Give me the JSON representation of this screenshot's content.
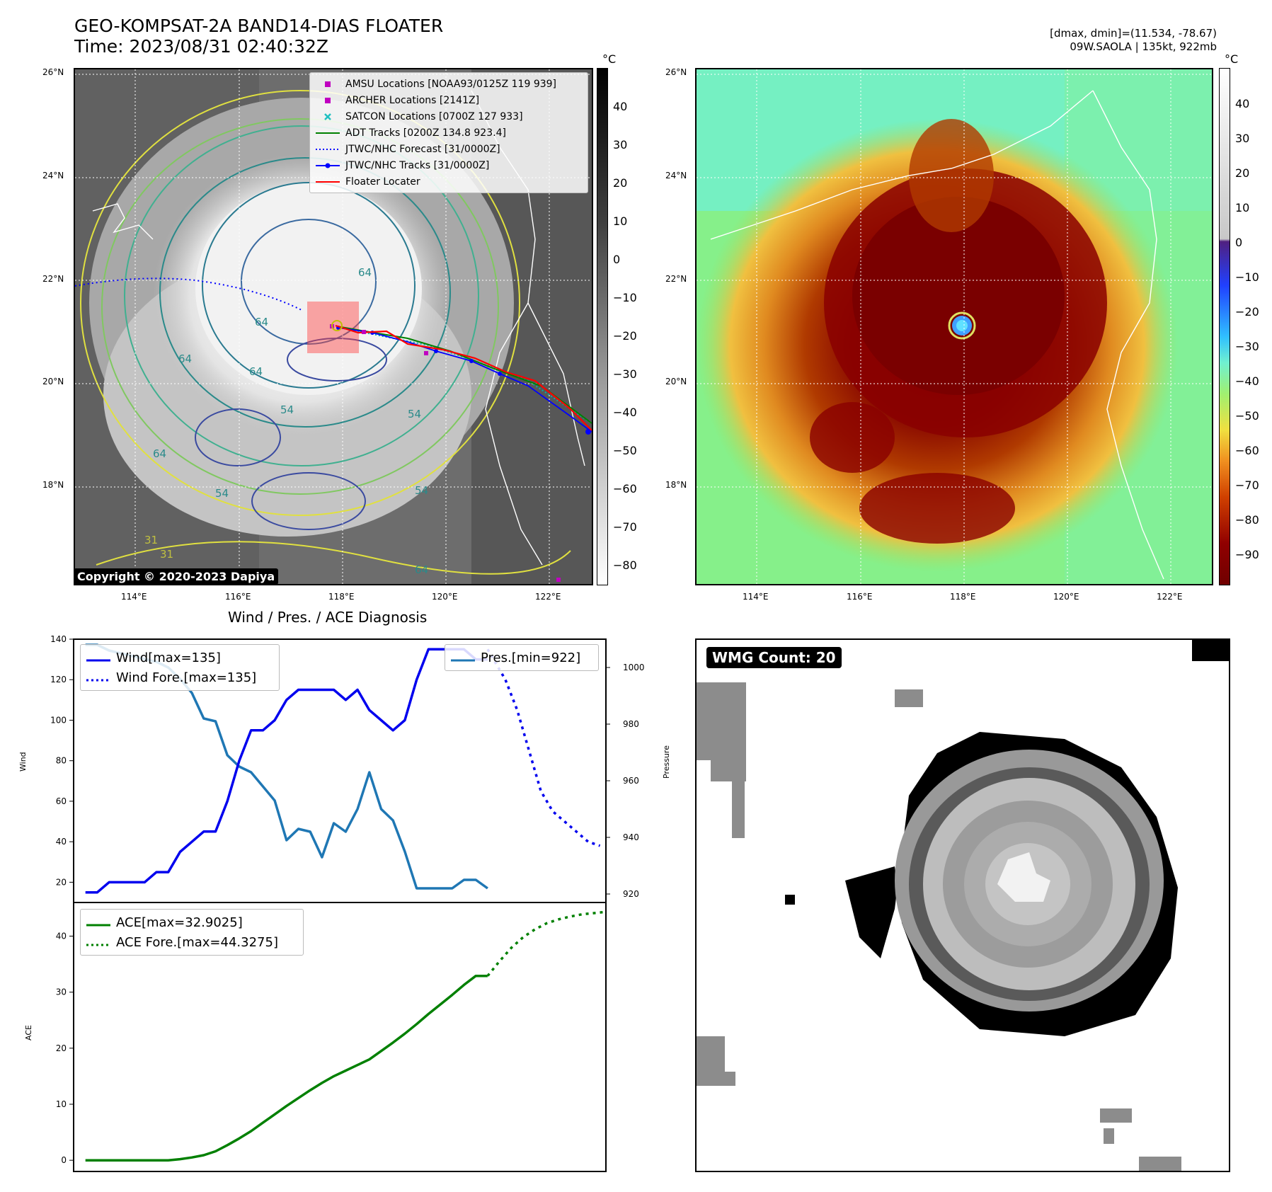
{
  "header": {
    "title_line1": "GEO-KOMPSAT-2A BAND14-DIAS FLOATER",
    "title_line2": "Time: 2023/08/31 02:40:32Z",
    "dmax_dmin": "[dmax, dmin]=(11.534, -78.67)",
    "storm_info": "09W.SAOLA | 135kt, 922mb"
  },
  "maps": {
    "lat_labels": [
      "26°N",
      "24°N",
      "22°N",
      "20°N",
      "18°N"
    ],
    "lon_labels": [
      "114°E",
      "116°E",
      "118°E",
      "120°E",
      "122°E"
    ],
    "unit": "°C",
    "left_colorbar_ticks": [
      "40",
      "30",
      "20",
      "10",
      "0",
      "−10",
      "−20",
      "−30",
      "−40",
      "−50",
      "−60",
      "−70",
      "−80"
    ],
    "right_colorbar_ticks": [
      "40",
      "30",
      "20",
      "10",
      "0",
      "−10",
      "−20",
      "−30",
      "−40",
      "−50",
      "−60",
      "−70",
      "−80",
      "−90"
    ],
    "contour_labels": [
      "64",
      "64",
      "64",
      "54",
      "54",
      "64",
      "64",
      "31",
      "31",
      "54",
      "64",
      "54"
    ],
    "copyright": "Copyright © 2020-2023 Dapiya",
    "legend": [
      {
        "label": "AMSU Locations [NOAA93/0125Z 119 939]",
        "color": "#c000c0",
        "icon": "square-marker"
      },
      {
        "label": "ARCHER Locations [2141Z]",
        "color": "#c000c0",
        "icon": "square-marker"
      },
      {
        "label": "SATCON Locations [0700Z 127 933]",
        "color": "#20c0c0",
        "icon": "x-marker"
      },
      {
        "label": "ADT Tracks [0200Z 134.8 923.4]",
        "color": "#008000",
        "icon": "solid-line"
      },
      {
        "label": "JTWC/NHC Forecast [31/0000Z]",
        "color": "#0000ff",
        "icon": "dotted-line"
      },
      {
        "label": "JTWC/NHC Tracks [31/0000Z]",
        "color": "#0000ff",
        "icon": "line-dot"
      },
      {
        "label": "Floater Locater",
        "color": "#ff0000",
        "icon": "solid-line"
      }
    ]
  },
  "wmg": {
    "label": "WMG Count: 20"
  },
  "chart_data": [
    {
      "type": "line",
      "title": "Wind / Pres. / ACE Diagnosis",
      "ylabel": "Wind",
      "y2label": "Pressure",
      "ylim": [
        10,
        140
      ],
      "y2lim": [
        917,
        1010
      ],
      "yticks": [
        20,
        40,
        60,
        80,
        100,
        120,
        140
      ],
      "y2ticks": [
        920,
        940,
        960,
        980,
        1000
      ],
      "xlim": [
        -2,
        88
      ],
      "series": [
        {
          "name": "Wind[max=135]",
          "axis": "left",
          "color": "#0000ee",
          "style": "solid",
          "x": [
            0,
            2,
            4,
            6,
            8,
            10,
            12,
            14,
            16,
            18,
            20,
            22,
            24,
            26,
            28,
            30,
            32,
            34,
            36,
            38,
            40,
            42,
            44,
            46,
            48,
            50,
            52,
            54,
            56,
            58,
            60,
            62,
            64,
            66,
            68
          ],
          "values": [
            15,
            15,
            20,
            20,
            20,
            20,
            25,
            25,
            35,
            40,
            45,
            45,
            60,
            80,
            95,
            95,
            100,
            110,
            115,
            115,
            115,
            115,
            110,
            115,
            105,
            100,
            95,
            100,
            120,
            135,
            135,
            135,
            135,
            130,
            130
          ]
        },
        {
          "name": "Wind Fore.[max=135]",
          "axis": "left",
          "color": "#0000ee",
          "style": "dotted",
          "x": [
            68,
            69,
            71,
            73,
            75,
            77,
            79,
            81,
            83,
            85,
            87
          ],
          "values": [
            135,
            130,
            120,
            105,
            85,
            65,
            55,
            50,
            45,
            40,
            38
          ]
        },
        {
          "name": "Pres.[min=922]",
          "axis": "right",
          "color": "#1f77b4",
          "style": "solid",
          "x": [
            0,
            2,
            4,
            6,
            8,
            10,
            12,
            14,
            16,
            18,
            20,
            22,
            24,
            26,
            28,
            30,
            32,
            34,
            36,
            38,
            40,
            42,
            44,
            46,
            48,
            50,
            52,
            54,
            56,
            58,
            60,
            62,
            64,
            66,
            68
          ],
          "values": [
            1008,
            1008,
            1006,
            1005,
            1004,
            1003,
            1002,
            1000,
            996,
            991,
            982,
            981,
            969,
            965,
            963,
            958,
            953,
            939,
            943,
            942,
            933,
            945,
            942,
            950,
            963,
            950,
            946,
            935,
            922,
            922,
            922,
            922,
            925,
            925,
            922
          ]
        }
      ]
    },
    {
      "type": "line",
      "ylabel": "ACE",
      "ylim": [
        -2,
        46
      ],
      "yticks": [
        0,
        10,
        20,
        30,
        40
      ],
      "xlim": [
        -2,
        88
      ],
      "series": [
        {
          "name": "ACE[max=32.9025]",
          "color": "#008000",
          "style": "solid",
          "x": [
            0,
            4,
            8,
            10,
            12,
            14,
            16,
            18,
            20,
            22,
            24,
            26,
            28,
            30,
            32,
            34,
            36,
            38,
            40,
            42,
            44,
            46,
            48,
            50,
            52,
            54,
            56,
            58,
            60,
            62,
            64,
            66,
            68
          ],
          "values": [
            0,
            0,
            0,
            0,
            0,
            0,
            0.2,
            0.5,
            0.9,
            1.6,
            2.7,
            3.9,
            5.2,
            6.7,
            8.2,
            9.7,
            11.1,
            12.5,
            13.8,
            15.0,
            16.0,
            17.0,
            18.0,
            19.5,
            21.0,
            22.6,
            24.3,
            26.1,
            27.8,
            29.5,
            31.3,
            32.9,
            32.9
          ]
        },
        {
          "name": "ACE Fore.[max=44.3275]",
          "color": "#008000",
          "style": "dotted",
          "x": [
            68,
            70,
            72,
            74,
            76,
            78,
            80,
            82,
            84,
            86,
            88
          ],
          "values": [
            32.9,
            35.5,
            37.9,
            39.8,
            41.2,
            42.3,
            43.0,
            43.5,
            43.9,
            44.1,
            44.33
          ]
        }
      ]
    }
  ]
}
